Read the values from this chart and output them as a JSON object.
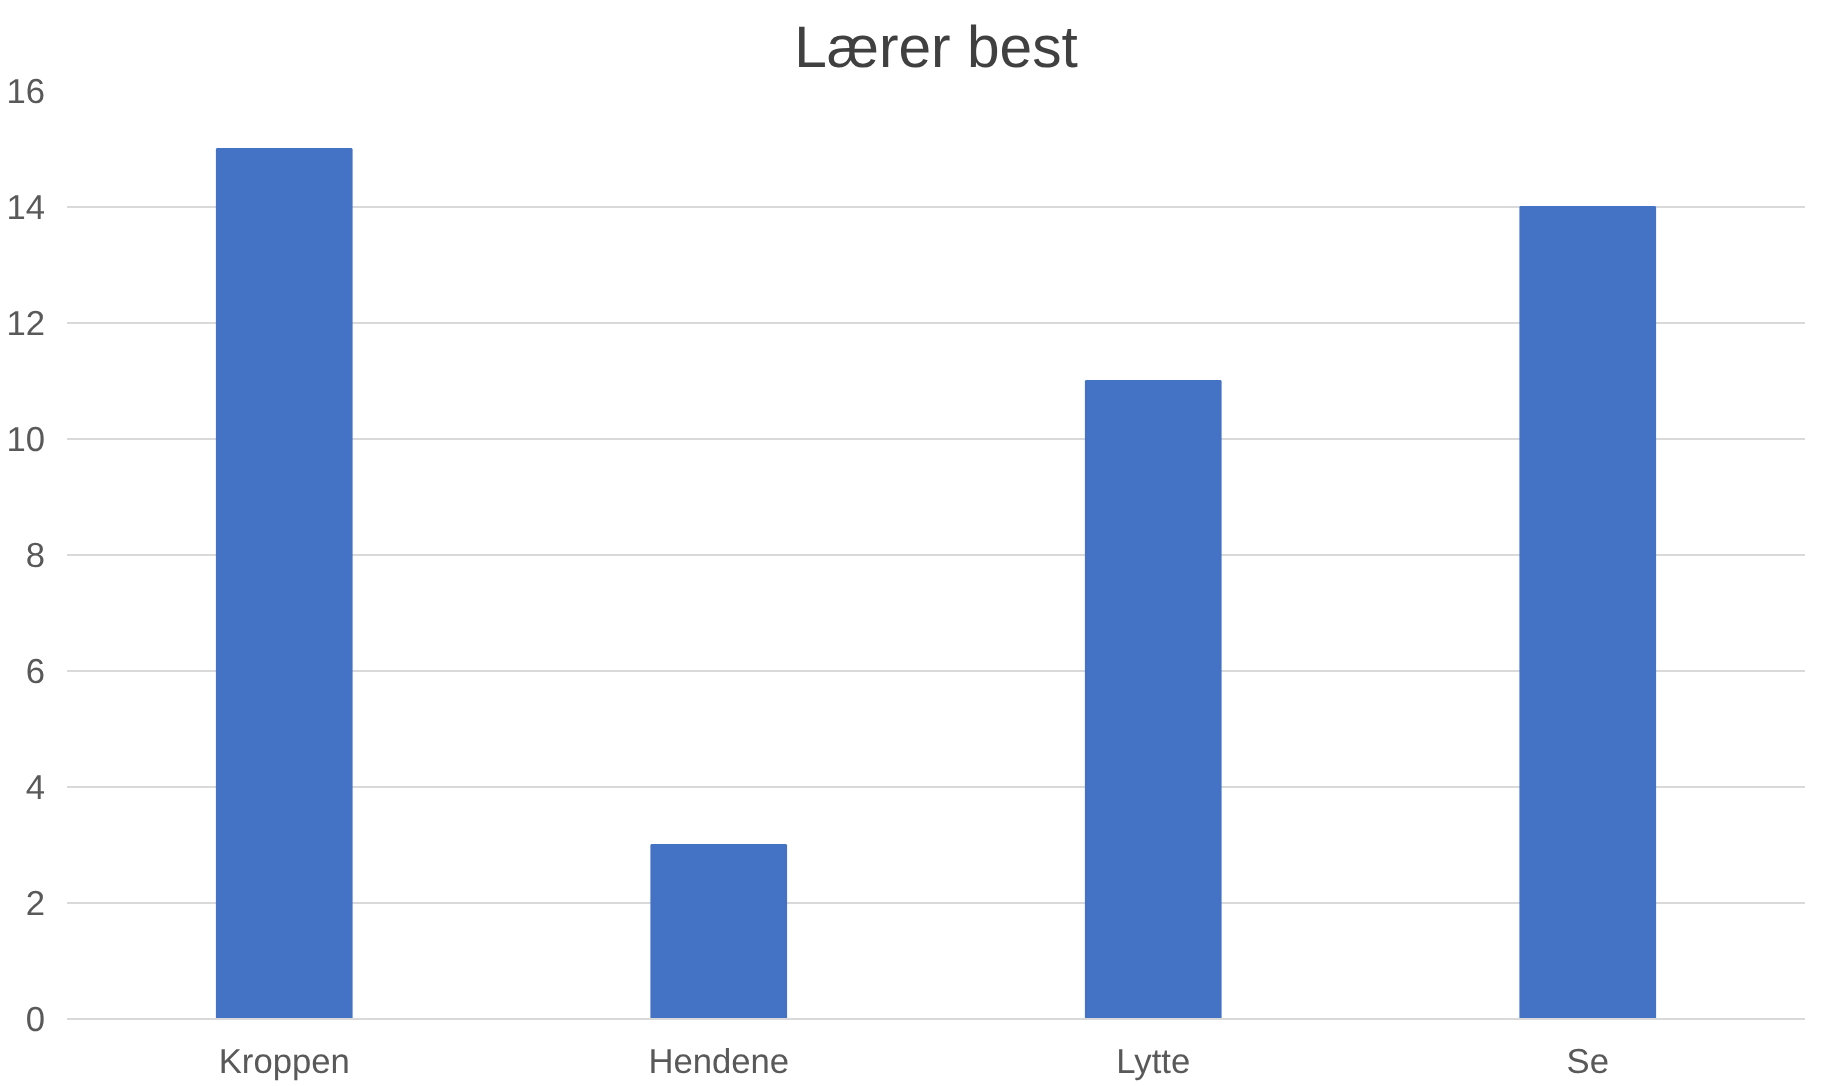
{
  "chart_data": {
    "type": "bar",
    "title": "Lærer best",
    "categories": [
      "Kroppen",
      "Hendene",
      "Lytte",
      "Se"
    ],
    "values": [
      15,
      3,
      11,
      14
    ],
    "color": "#4472c4",
    "ylim": [
      0,
      16
    ],
    "yticks": [
      0,
      2,
      4,
      6,
      8,
      10,
      12,
      14,
      16
    ],
    "grid": "y"
  }
}
